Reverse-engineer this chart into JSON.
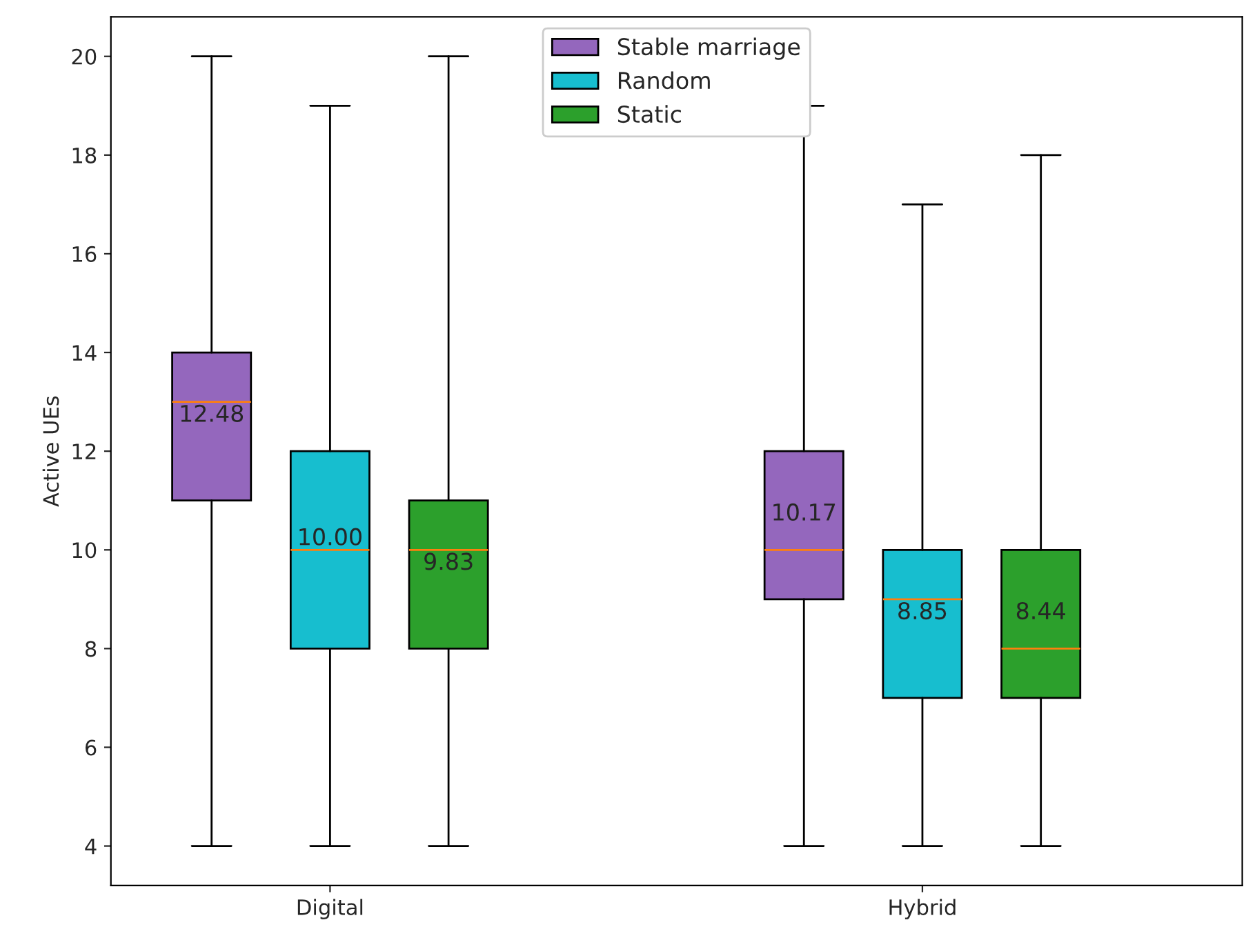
{
  "chart_data": {
    "type": "box",
    "ylabel": "Active UEs",
    "categories": [
      "Digital",
      "Hybrid"
    ],
    "series": [
      {
        "name": "Stable marriage",
        "color": "#9467bd",
        "boxes": [
          {
            "low": 4,
            "q1": 11,
            "median": 13,
            "q3": 14,
            "high": 20
          },
          {
            "low": 4,
            "q1": 9,
            "median": 10,
            "q3": 12,
            "high": 19
          }
        ]
      },
      {
        "name": "Random",
        "color": "#17becf",
        "boxes": [
          {
            "low": 4,
            "q1": 8,
            "median": 10,
            "q3": 12,
            "high": 19
          },
          {
            "low": 4,
            "q1": 7,
            "median": 9,
            "q3": 10,
            "high": 17
          }
        ]
      },
      {
        "name": "Static",
        "color": "#2ca02c",
        "boxes": [
          {
            "low": 4,
            "q1": 8,
            "median": 10,
            "q3": 11,
            "high": 20
          },
          {
            "low": 4,
            "q1": 7,
            "median": 8,
            "q3": 10,
            "high": 18
          }
        ]
      }
    ],
    "annotations": [
      "12.48",
      "10.00",
      "9.83",
      "10.17",
      "8.85",
      "8.44"
    ],
    "ylim": [
      3.2,
      20.8
    ],
    "yticks": [
      4,
      6,
      8,
      10,
      12,
      14,
      16,
      18,
      20
    ],
    "legend": "top center",
    "grid": false
  }
}
